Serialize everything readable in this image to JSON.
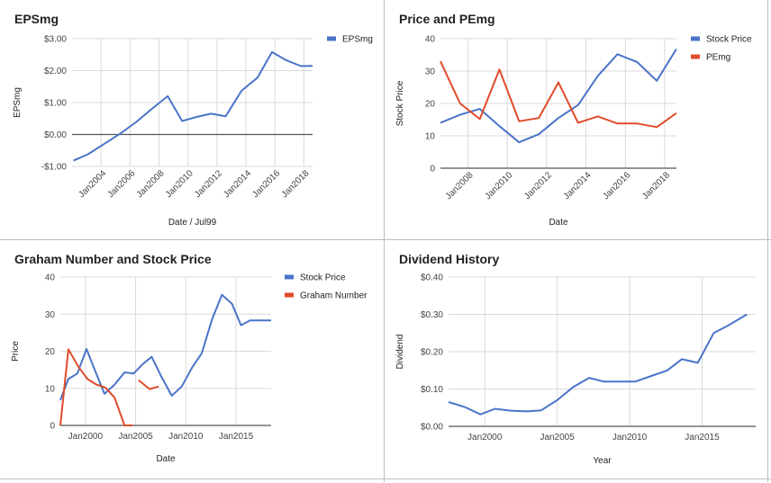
{
  "chart_data": [
    {
      "id": "eps",
      "type": "line",
      "title": "EPSmg",
      "xlabel": "Date / Jul99",
      "ylabel": "EPSmg",
      "xlim": [
        2002.0,
        2018.6
      ],
      "ylim": [
        -1,
        3
      ],
      "yticks": [
        -1,
        0,
        1,
        2,
        3
      ],
      "ytick_labels": [
        "-$1.00",
        "$0.00",
        "$1.00",
        "$2.00",
        "$3.00"
      ],
      "xticks": [
        2004,
        2006,
        2008,
        2010,
        2012,
        2014,
        2016,
        2018
      ],
      "xtick_labels": [
        "Jan2004",
        "Jan2006",
        "Jan2008",
        "Jan2010",
        "Jan2012",
        "Jan2014",
        "Jan2016",
        "Jan2018"
      ],
      "xtick_rotate": true,
      "zero_line": true,
      "legend": "top-right",
      "series": [
        {
          "name": "EPSmg",
          "color": "#4a74c9",
          "x": [
            2002.1,
            2003.1,
            2004.2,
            2005.3,
            2006.4,
            2007.5,
            2008.6,
            2009.6,
            2010.6,
            2011.6,
            2012.6,
            2013.7,
            2014.8,
            2015.8,
            2016.8,
            2017.8,
            2018.6
          ],
          "y": [
            -0.82,
            -0.62,
            -0.3,
            0.02,
            0.38,
            0.8,
            1.2,
            0.42,
            0.55,
            0.65,
            0.57,
            1.37,
            1.78,
            2.58,
            2.32,
            2.14,
            2.15
          ]
        }
      ]
    },
    {
      "id": "pe",
      "type": "line",
      "title": "Price and PEmg",
      "xlabel": "Date",
      "ylabel": "Stock Price",
      "xlim": [
        2006.6,
        2018.6
      ],
      "ylim": [
        0,
        40
      ],
      "yticks": [
        0,
        10,
        20,
        30,
        40
      ],
      "ytick_labels": [
        "0",
        "10",
        "20",
        "30",
        "40"
      ],
      "xticks": [
        2008,
        2010,
        2012,
        2014,
        2016,
        2018
      ],
      "xtick_labels": [
        "Jan2008",
        "Jan2010",
        "Jan2012",
        "Jan2014",
        "Jan2016",
        "Jan2018"
      ],
      "xtick_rotate": true,
      "zero_line": false,
      "legend": "top-right",
      "series": [
        {
          "name": "Stock Price",
          "color": "#4a74c9",
          "x": [
            2006.6,
            2007.6,
            2008.6,
            2009.6,
            2010.6,
            2011.6,
            2012.6,
            2013.6,
            2014.6,
            2015.6,
            2016.6,
            2017.6,
            2018.6
          ],
          "y": [
            14.0,
            16.5,
            18.3,
            13.0,
            8.0,
            10.5,
            15.5,
            19.5,
            28.5,
            35.2,
            32.8,
            27.0,
            36.8
          ]
        },
        {
          "name": "PEmg",
          "color": "#e04b2a",
          "x": [
            2006.6,
            2007.6,
            2008.6,
            2009.6,
            2010.6,
            2011.6,
            2012.6,
            2013.6,
            2014.6,
            2015.6,
            2016.6,
            2017.6,
            2018.6
          ],
          "y": [
            33.0,
            20.0,
            15.2,
            30.5,
            14.5,
            15.5,
            26.5,
            14.0,
            16.0,
            13.8,
            13.8,
            12.7,
            17.0
          ]
        }
      ]
    },
    {
      "id": "graham",
      "type": "line",
      "title": "Graham Number and Stock Price",
      "xlabel": "Date",
      "ylabel": "Price",
      "xlim": [
        1997.5,
        2018.5
      ],
      "ylim": [
        0,
        40
      ],
      "yticks": [
        0,
        10,
        20,
        30,
        40
      ],
      "ytick_labels": [
        "0",
        "10",
        "20",
        "30",
        "40"
      ],
      "xticks": [
        2000,
        2005,
        2010,
        2015
      ],
      "xtick_labels": [
        "Jan2000",
        "Jan2005",
        "Jan2010",
        "Jan2015"
      ],
      "xtick_rotate": false,
      "zero_line": false,
      "legend": "top-right",
      "series": [
        {
          "name": "Stock Price",
          "color": "#4a74c9",
          "x": [
            1997.5,
            1998.3,
            1999.2,
            2000.1,
            2001.0,
            2001.9,
            2002.9,
            2003.9,
            2004.8,
            2005.7,
            2006.6,
            2007.6,
            2008.6,
            2009.6,
            2010.6,
            2011.6,
            2012.6,
            2013.6,
            2014.6,
            2015.5,
            2016.4,
            2017.4,
            2018.5
          ],
          "y": [
            6.8,
            12.5,
            14.0,
            20.6,
            14.5,
            8.5,
            11.0,
            14.3,
            14.0,
            16.5,
            18.5,
            13.0,
            8.0,
            10.5,
            15.5,
            19.5,
            28.5,
            35.2,
            32.8,
            27.0,
            28.3,
            28.3,
            28.3
          ]
        },
        {
          "name": "Graham Number",
          "color": "#e04b2a",
          "segments": [
            {
              "x": [
                1997.5,
                1998.3,
                1999.3,
                2000.2,
                2001.1,
                2002.0,
                2002.9,
                2003.9,
                2004.4,
                2004.7
              ],
              "y": [
                0.0,
                20.5,
                15.8,
                12.5,
                11.0,
                10.2,
                7.5,
                0.0,
                0.0,
                0.0
              ]
            },
            {
              "x": [
                2005.3,
                2006.4,
                2007.3
              ],
              "y": [
                12.2,
                9.8,
                10.5
              ]
            }
          ]
        }
      ]
    },
    {
      "id": "dividend",
      "type": "line",
      "title": "Dividend History",
      "xlabel": "Year",
      "ylabel": "Dividend",
      "xlim": [
        1997.5,
        2018.7
      ],
      "ylim": [
        0,
        0.4
      ],
      "yticks": [
        0,
        0.1,
        0.2,
        0.3,
        0.4
      ],
      "ytick_labels": [
        "$0.00",
        "$0.10",
        "$0.20",
        "$0.30",
        "$0.40"
      ],
      "xticks": [
        2000,
        2005,
        2010,
        2015
      ],
      "xtick_labels": [
        "Jan2000",
        "Jan2005",
        "Jan2010",
        "Jan2015"
      ],
      "xtick_rotate": false,
      "zero_line": false,
      "legend": "none",
      "series": [
        {
          "color": "#4a74c9",
          "x": [
            1997.5,
            1998.6,
            1999.7,
            2000.7,
            2001.8,
            2002.9,
            2003.9,
            2005.0,
            2006.1,
            2007.2,
            2008.2,
            2009.3,
            2010.4,
            2011.5,
            2012.6,
            2013.6,
            2014.7,
            2015.8,
            2016.8,
            2018.1
          ],
          "y": [
            0.065,
            0.052,
            0.032,
            0.047,
            0.042,
            0.04,
            0.043,
            0.07,
            0.105,
            0.13,
            0.12,
            0.12,
            0.12,
            0.135,
            0.15,
            0.18,
            0.17,
            0.25,
            0.27,
            0.3
          ]
        }
      ]
    }
  ]
}
